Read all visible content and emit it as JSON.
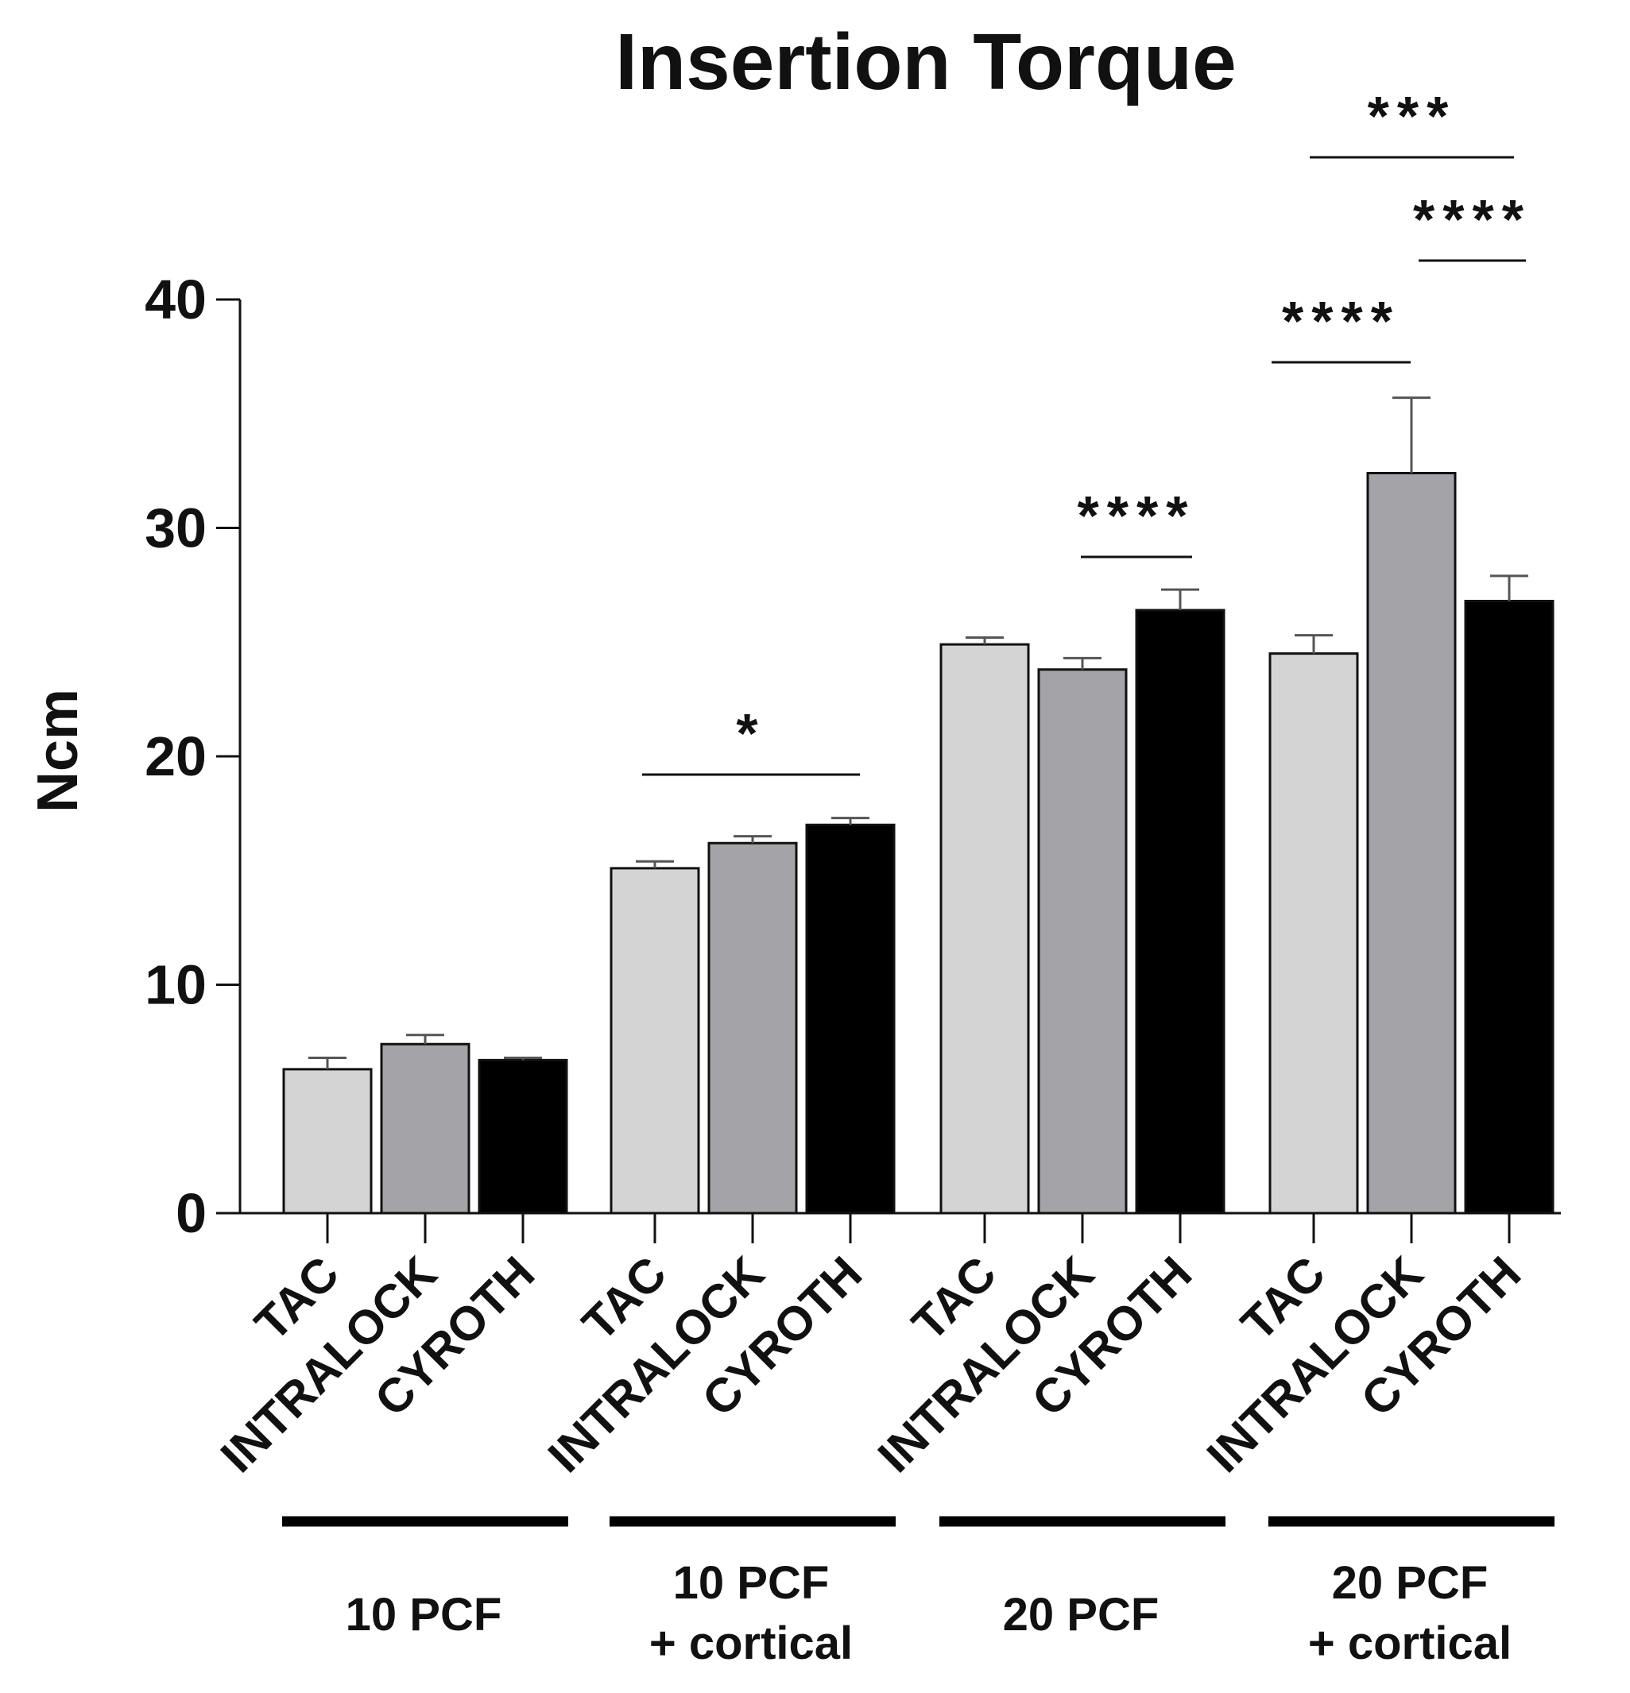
{
  "chart_data": {
    "type": "bar",
    "title": "Insertion Torque",
    "ylabel": "Ncm",
    "xlabel": "",
    "ylim": [
      0,
      40
    ],
    "yticks": [
      0,
      10,
      20,
      30,
      40
    ],
    "grid": false,
    "legend": "none",
    "error_bar_direction": "upper",
    "groups": [
      {
        "label_line1": "10 PCF",
        "label_line2": ""
      },
      {
        "label_line1": "10 PCF",
        "label_line2": "+ cortical"
      },
      {
        "label_line1": "20 PCF",
        "label_line2": ""
      },
      {
        "label_line1": "20 PCF",
        "label_line2": "+ cortical"
      }
    ],
    "series": [
      {
        "name": "TAC",
        "color": "#d4d4d4",
        "values": [
          6.3,
          15.1,
          24.9,
          24.5
        ],
        "errors": [
          0.5,
          0.3,
          0.3,
          0.8
        ]
      },
      {
        "name": "INTRALOCK",
        "color": "#a3a3a8",
        "values": [
          7.4,
          16.2,
          23.8,
          32.4
        ],
        "errors": [
          0.4,
          0.3,
          0.5,
          3.3
        ]
      },
      {
        "name": "CYROTH",
        "color": "#000000",
        "values": [
          6.7,
          17.0,
          26.4,
          26.8
        ],
        "errors": [
          0.1,
          0.3,
          0.9,
          1.1
        ]
      }
    ],
    "annotations": [
      {
        "text": "*",
        "group": 1,
        "from_series": 0,
        "to_series": 2
      },
      {
        "text": "****",
        "group": 2,
        "from_series": 1,
        "to_series": 2
      },
      {
        "text": "****",
        "group": 3,
        "from_series": 0,
        "to_series": 1
      },
      {
        "text": "****",
        "group": 3,
        "from_series": 1,
        "to_series": 2
      },
      {
        "text": "***",
        "group": 3,
        "from_series": 0,
        "to_series": 2
      }
    ],
    "colors": {
      "axis": "#111111",
      "error_bar": "#555555",
      "bar_outline": "#111111"
    }
  }
}
